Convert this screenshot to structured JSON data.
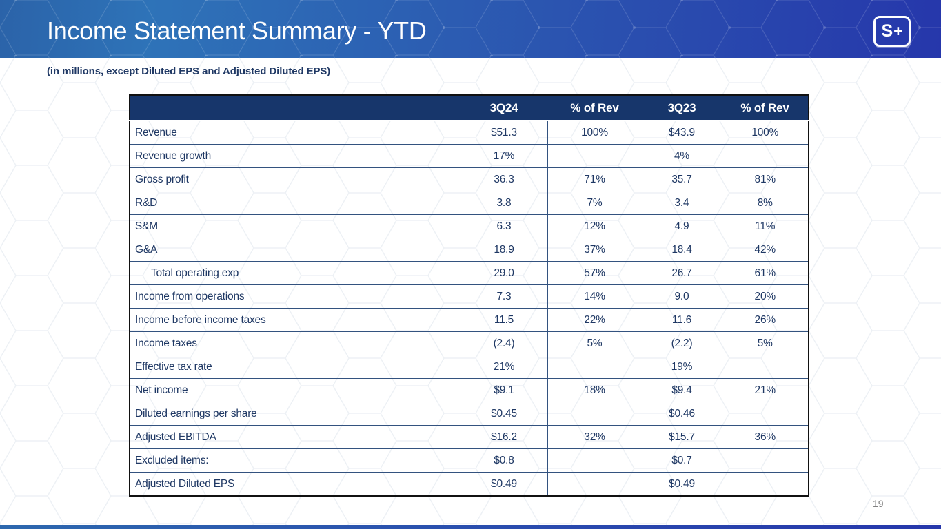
{
  "header": {
    "title": "Income Statement Summary - YTD",
    "logo_s": "S",
    "logo_plus": "+"
  },
  "subtitle": "(in millions, except Diluted EPS and Adjusted Diluted EPS)",
  "table": {
    "columns": [
      "",
      "3Q24",
      "% of Rev",
      "3Q23",
      "% of Rev"
    ],
    "rows": [
      {
        "label": "Revenue",
        "indent": false,
        "values": [
          "$51.3",
          "100%",
          "$43.9",
          "100%"
        ]
      },
      {
        "label": "Revenue growth",
        "indent": false,
        "values": [
          "17%",
          "",
          "4%",
          ""
        ]
      },
      {
        "label": "Gross profit",
        "indent": false,
        "values": [
          "36.3",
          "71%",
          "35.7",
          "81%"
        ]
      },
      {
        "label": "R&D",
        "indent": false,
        "values": [
          "3.8",
          "7%",
          "3.4",
          "8%"
        ]
      },
      {
        "label": "S&M",
        "indent": false,
        "values": [
          "6.3",
          "12%",
          "4.9",
          "11%"
        ]
      },
      {
        "label": "G&A",
        "indent": false,
        "values": [
          "18.9",
          "37%",
          "18.4",
          "42%"
        ]
      },
      {
        "label": "Total operating exp",
        "indent": true,
        "values": [
          "29.0",
          "57%",
          "26.7",
          "61%"
        ]
      },
      {
        "label": "Income from operations",
        "indent": false,
        "values": [
          "7.3",
          "14%",
          "9.0",
          "20%"
        ]
      },
      {
        "label": "Income before income taxes",
        "indent": false,
        "values": [
          "11.5",
          "22%",
          "11.6",
          "26%"
        ]
      },
      {
        "label": "Income taxes",
        "indent": false,
        "values": [
          "(2.4)",
          "5%",
          "(2.2)",
          "5%"
        ]
      },
      {
        "label": "Effective tax rate",
        "indent": false,
        "values": [
          "21%",
          "",
          "19%",
          ""
        ]
      },
      {
        "label": "Net income",
        "indent": false,
        "values": [
          "$9.1",
          "18%",
          "$9.4",
          "21%"
        ]
      },
      {
        "label": "Diluted earnings per share",
        "indent": false,
        "values": [
          "$0.45",
          "",
          "$0.46",
          ""
        ]
      },
      {
        "label": "Adjusted EBITDA",
        "indent": false,
        "values": [
          "$16.2",
          "32%",
          "$15.7",
          "36%"
        ]
      },
      {
        "label": "Excluded items:",
        "indent": false,
        "values": [
          "$0.8",
          "",
          "$0.7",
          ""
        ]
      },
      {
        "label": "Adjusted Diluted EPS",
        "indent": false,
        "values": [
          "$0.49",
          "",
          "$0.49",
          ""
        ]
      }
    ]
  },
  "footer": {
    "page_number": "19"
  },
  "colors": {
    "header_gradient_left": "#2e73b8",
    "header_gradient_right": "#2637ab",
    "table_header_bg": "#17366b",
    "text_navy": "#1f3864",
    "grid_line": "#33527f",
    "page_number_gray": "#808080"
  }
}
